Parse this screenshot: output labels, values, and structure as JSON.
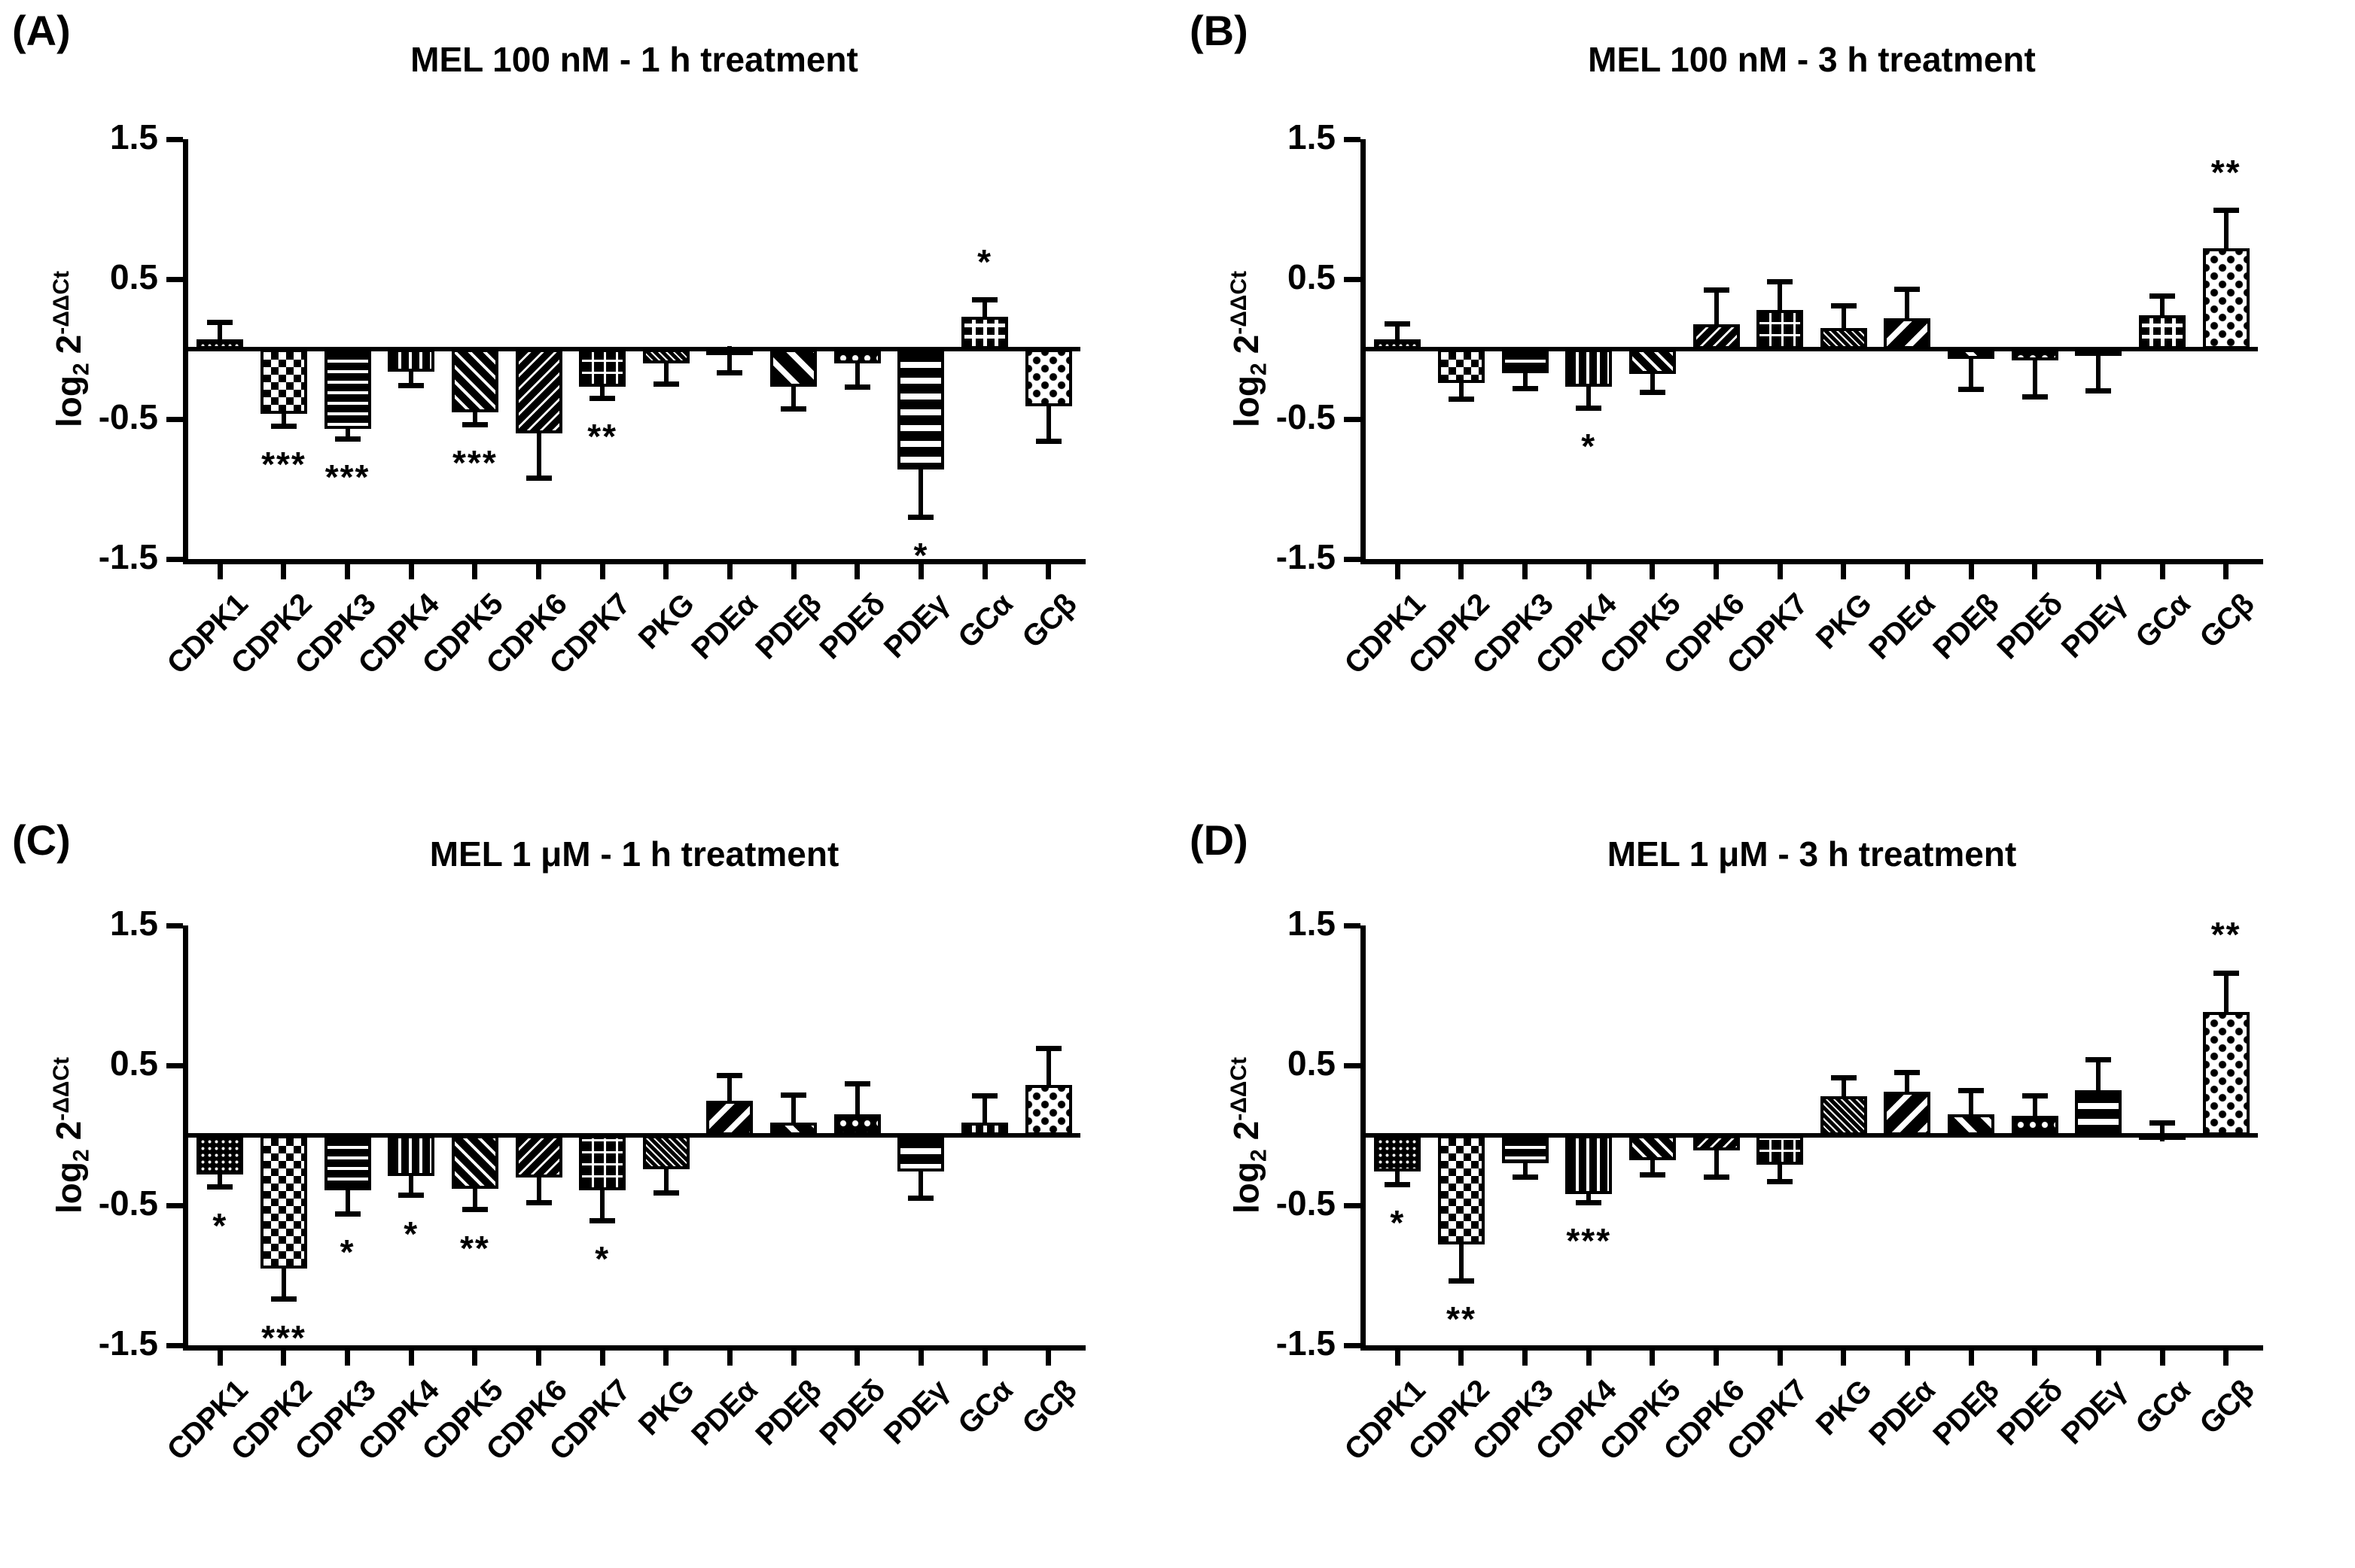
{
  "figure": {
    "background": "#ffffff",
    "bar_color": "#000000"
  },
  "axis": {
    "ylabel_pre": "log",
    "ylabel_sub": "2",
    "ylabel_base": "2",
    "ylabel_sup": "-ΔΔCt",
    "y_ticks": [
      "1.5",
      "0.5",
      "-0.5",
      "-1.5"
    ],
    "ylim": [
      -1.5,
      1.5
    ]
  },
  "chart_data": [
    {
      "id": "A",
      "panel_label": "(A)",
      "type": "bar",
      "title": "MEL 100 nM - 1 h treatment",
      "ylabel": "log2 2^-ΔΔCt",
      "ylim": [
        -1.5,
        1.5
      ],
      "grid": false,
      "categories": [
        "CDPK1",
        "CDPK2",
        "CDPK3",
        "CDPK4",
        "CDPK5",
        "CDPK6",
        "CDPK7",
        "PKG",
        "PDEα",
        "PDEβ",
        "PDEδ",
        "PDEγ",
        "GCα",
        "GCβ"
      ],
      "patterns": [
        "dots-fine",
        "checker",
        "hlines",
        "vlines",
        "diag-ne",
        "diag-nw",
        "grid",
        "diag-fine",
        "diag-nw-wide",
        "diag-ne-wide",
        "dots-sparse",
        "hlines-wide",
        "plus-grid",
        "diamond"
      ],
      "values": [
        0.07,
        -0.46,
        -0.57,
        -0.16,
        -0.45,
        -0.6,
        -0.27,
        -0.1,
        -0.03,
        -0.27,
        -0.1,
        -0.86,
        0.23,
        -0.41
      ],
      "errors": [
        0.12,
        0.09,
        0.07,
        0.1,
        0.09,
        0.32,
        0.08,
        0.15,
        0.14,
        0.16,
        0.17,
        0.34,
        0.12,
        0.25
      ],
      "sig": [
        "",
        "***",
        "***",
        "",
        "***",
        "",
        "**",
        "",
        "",
        "",
        "",
        "*",
        "*",
        ""
      ]
    },
    {
      "id": "B",
      "panel_label": "(B)",
      "type": "bar",
      "title": "MEL 100 nM - 3 h treatment",
      "ylabel": "log2 2^-ΔΔCt",
      "ylim": [
        -1.5,
        1.5
      ],
      "grid": false,
      "categories": [
        "CDPK1",
        "CDPK2",
        "CDPK3",
        "CDPK4",
        "CDPK5",
        "CDPK6",
        "CDPK7",
        "PKG",
        "PDEα",
        "PDEβ",
        "PDEδ",
        "PDEγ",
        "GCα",
        "GCβ"
      ],
      "patterns": [
        "dots-fine",
        "checker",
        "hlines",
        "vlines",
        "diag-ne",
        "diag-nw",
        "grid",
        "diag-fine",
        "diag-nw-wide",
        "diag-ne-wide",
        "dots-sparse",
        "hlines-wide",
        "plus-grid",
        "diamond"
      ],
      "values": [
        0.07,
        -0.24,
        -0.17,
        -0.27,
        -0.18,
        0.18,
        0.28,
        0.15,
        0.22,
        -0.07,
        -0.08,
        -0.05,
        0.24,
        0.72
      ],
      "errors": [
        0.11,
        0.12,
        0.11,
        0.15,
        0.13,
        0.24,
        0.2,
        0.16,
        0.21,
        0.22,
        0.26,
        0.25,
        0.14,
        0.27
      ],
      "sig": [
        "",
        "",
        "",
        "*",
        "",
        "",
        "",
        "",
        "",
        "",
        "",
        "",
        "",
        "**"
      ]
    },
    {
      "id": "C",
      "panel_label": "(C)",
      "type": "bar",
      "title": "MEL 1 μM - 1 h treatment",
      "ylabel": "log2 2^-ΔΔCt",
      "ylim": [
        -1.5,
        1.5
      ],
      "grid": false,
      "categories": [
        "CDPK1",
        "CDPK2",
        "CDPK3",
        "CDPK4",
        "CDPK5",
        "CDPK6",
        "CDPK7",
        "PKG",
        "PDEα",
        "PDEβ",
        "PDEδ",
        "PDEγ",
        "GCα",
        "GCβ"
      ],
      "patterns": [
        "dots-fine",
        "checker",
        "hlines",
        "vlines",
        "diag-ne",
        "diag-nw",
        "grid",
        "diag-fine",
        "diag-nw-wide",
        "diag-ne-wide",
        "dots-sparse",
        "hlines-wide",
        "plus-grid",
        "diamond"
      ],
      "values": [
        -0.28,
        -0.95,
        -0.39,
        -0.29,
        -0.38,
        -0.3,
        -0.39,
        -0.24,
        0.25,
        0.09,
        0.15,
        -0.26,
        0.09,
        0.36
      ],
      "errors": [
        0.09,
        0.22,
        0.17,
        0.14,
        0.15,
        0.18,
        0.22,
        0.17,
        0.18,
        0.2,
        0.22,
        0.19,
        0.19,
        0.26
      ],
      "sig": [
        "*",
        "***",
        "*",
        "*",
        "**",
        "",
        "*",
        "",
        "",
        "",
        "",
        "",
        "",
        ""
      ]
    },
    {
      "id": "D",
      "panel_label": "(D)",
      "type": "bar",
      "title": "MEL 1 μM - 3 h treatment",
      "ylabel": "log2 2^-ΔΔCt",
      "ylim": [
        -1.5,
        1.5
      ],
      "grid": false,
      "categories": [
        "CDPK1",
        "CDPK2",
        "CDPK3",
        "CDPK4",
        "CDPK5",
        "CDPK6",
        "CDPK7",
        "PKG",
        "PDEα",
        "PDEβ",
        "PDEδ",
        "PDEγ",
        "GCα",
        "GCβ"
      ],
      "patterns": [
        "dots-fine",
        "checker",
        "hlines",
        "vlines",
        "diag-ne",
        "diag-nw",
        "grid",
        "diag-fine",
        "diag-nw-wide",
        "diag-ne-wide",
        "dots-sparse",
        "hlines-wide",
        "plus-grid",
        "diamond"
      ],
      "values": [
        -0.26,
        -0.78,
        -0.2,
        -0.42,
        -0.18,
        -0.11,
        -0.21,
        0.28,
        0.31,
        0.15,
        0.14,
        0.32,
        0.01,
        0.88
      ],
      "errors": [
        0.09,
        0.26,
        0.1,
        0.06,
        0.1,
        0.19,
        0.12,
        0.13,
        0.14,
        0.17,
        0.14,
        0.22,
        0.08,
        0.28
      ],
      "sig": [
        "*",
        "**",
        "",
        "***",
        "",
        "",
        "",
        "",
        "",
        "",
        "",
        "",
        "",
        "**"
      ]
    }
  ]
}
